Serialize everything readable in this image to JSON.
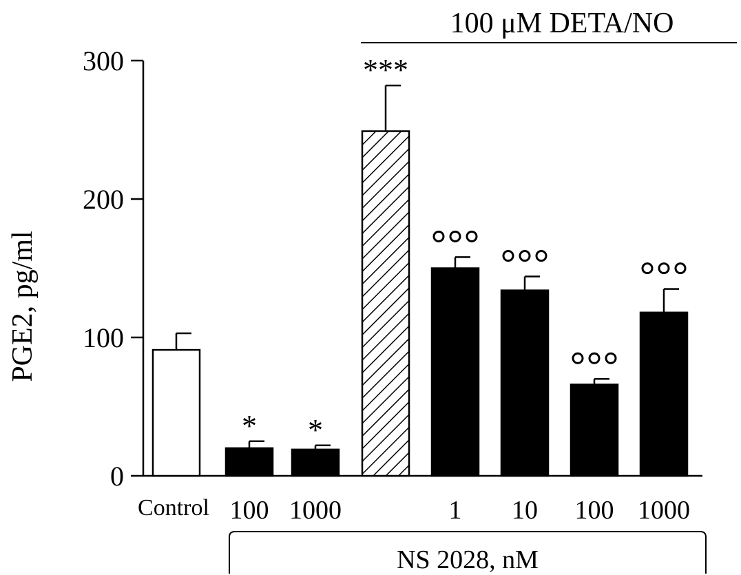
{
  "chart_data": {
    "type": "bar",
    "ylabel": "PGE2, pg/ml",
    "ylim": [
      0,
      300
    ],
    "yticks": [
      0,
      100,
      200,
      300
    ],
    "categories": [
      "Control",
      "100",
      "1000",
      "",
      "1",
      "10",
      "100",
      "1000"
    ],
    "values": [
      91,
      20,
      19,
      249,
      150,
      134,
      66,
      118
    ],
    "errors": [
      12,
      5,
      3,
      33,
      8,
      10,
      4,
      17
    ],
    "fills": [
      "white",
      "black",
      "black",
      "hatched",
      "black",
      "black",
      "black",
      "black"
    ],
    "annotations": [
      "",
      "*",
      "*",
      "***",
      "ooo",
      "ooo",
      "ooo",
      "ooo"
    ],
    "top_bracket_label": "100 μM DETA/NO",
    "bottom_bracket_label": "NS 2028, nM",
    "grid": false
  },
  "colors": {
    "bar_fill": "#000000",
    "bar_empty": "#ffffff",
    "axis": "#000000"
  }
}
